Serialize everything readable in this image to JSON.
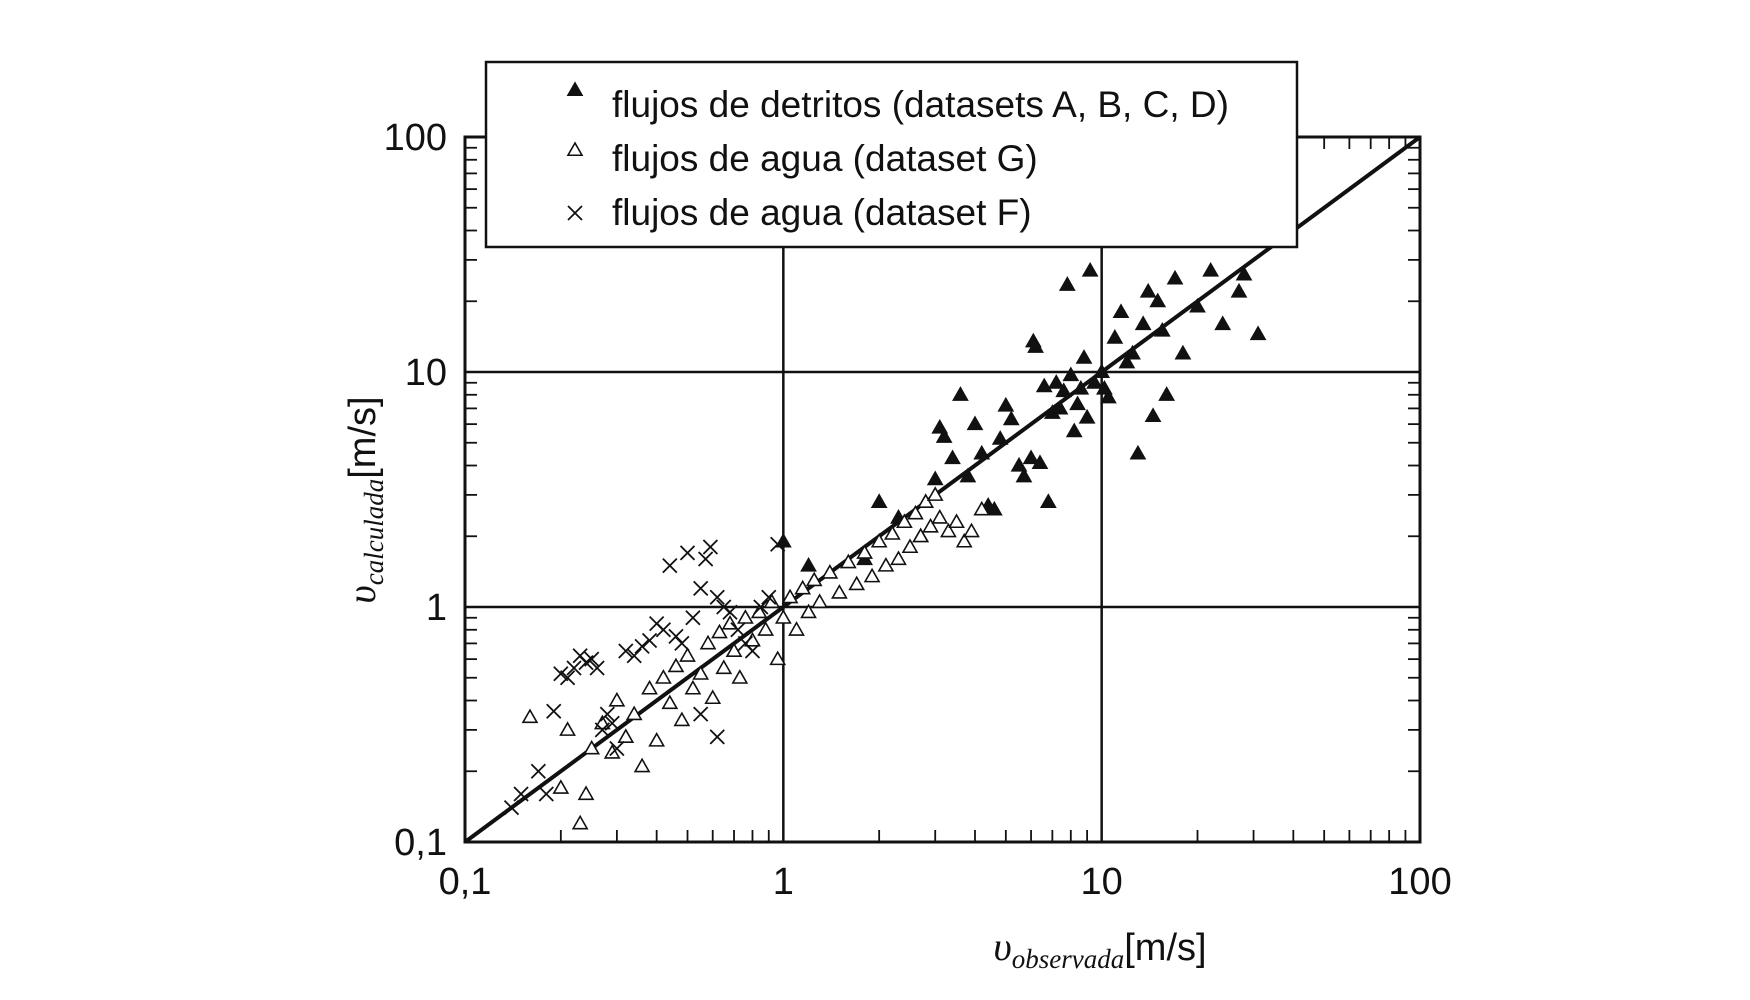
{
  "chart_data": {
    "type": "scatter",
    "scale": {
      "x": "log",
      "y": "log"
    },
    "xlim": [
      0.1,
      100
    ],
    "ylim": [
      0.1,
      100
    ],
    "grid": "major",
    "legend_position": "top",
    "x_ticks": [
      "0,1",
      "1",
      "10",
      "100"
    ],
    "y_ticks": [
      "0,1",
      "1",
      "10",
      "100"
    ],
    "xlabel": {
      "symbol": "υ",
      "subscript": "observada",
      "unit": "[m/s]"
    },
    "ylabel": {
      "symbol": "υ",
      "subscript": "calculada",
      "unit": "[m/s]"
    },
    "reference_line": {
      "x": [
        0.1,
        100
      ],
      "y": [
        0.1,
        100
      ]
    },
    "series": [
      {
        "name": "flujos de detritos (datasets A, B, C, D)",
        "marker": "filled-triangle",
        "points": [
          [
            1.0,
            1.9
          ],
          [
            1.2,
            1.5
          ],
          [
            1.8,
            1.6
          ],
          [
            2.0,
            2.8
          ],
          [
            2.3,
            2.4
          ],
          [
            2.7,
            2.0
          ],
          [
            3.0,
            3.5
          ],
          [
            3.1,
            5.8
          ],
          [
            3.2,
            5.3
          ],
          [
            3.4,
            4.3
          ],
          [
            3.6,
            8.0
          ],
          [
            3.8,
            3.6
          ],
          [
            4.0,
            6.0
          ],
          [
            4.2,
            4.5
          ],
          [
            4.4,
            2.7
          ],
          [
            4.6,
            2.6
          ],
          [
            4.8,
            5.2
          ],
          [
            5.0,
            7.2
          ],
          [
            5.2,
            6.3
          ],
          [
            5.5,
            4.0
          ],
          [
            5.7,
            3.6
          ],
          [
            6.0,
            4.3
          ],
          [
            6.1,
            13.5
          ],
          [
            6.2,
            12.8
          ],
          [
            6.4,
            4.1
          ],
          [
            6.6,
            8.7
          ],
          [
            6.8,
            2.8
          ],
          [
            7.0,
            6.7
          ],
          [
            7.2,
            9.0
          ],
          [
            7.4,
            7.0
          ],
          [
            7.6,
            8.3
          ],
          [
            7.8,
            23.5
          ],
          [
            8.0,
            9.7
          ],
          [
            8.2,
            5.6
          ],
          [
            8.4,
            7.3
          ],
          [
            8.6,
            8.5
          ],
          [
            8.8,
            11.5
          ],
          [
            9.0,
            6.4
          ],
          [
            9.2,
            27.0
          ],
          [
            9.5,
            9.0
          ],
          [
            10.0,
            10.0
          ],
          [
            10.2,
            8.5
          ],
          [
            10.5,
            7.8
          ],
          [
            11.0,
            14.0
          ],
          [
            11.5,
            18.0
          ],
          [
            12.0,
            11.0
          ],
          [
            12.5,
            12.0
          ],
          [
            13.0,
            4.5
          ],
          [
            13.5,
            16.0
          ],
          [
            14.0,
            22.0
          ],
          [
            14.5,
            6.5
          ],
          [
            15.0,
            20.0
          ],
          [
            15.5,
            15.0
          ],
          [
            16.0,
            8.0
          ],
          [
            17.0,
            25.0
          ],
          [
            18.0,
            12.0
          ],
          [
            20.0,
            19.0
          ],
          [
            22.0,
            27.0
          ],
          [
            24.0,
            16.0
          ],
          [
            27.0,
            22.0
          ],
          [
            28.0,
            26.0
          ],
          [
            31.0,
            14.5
          ]
        ]
      },
      {
        "name": "flujos de agua (dataset G)",
        "marker": "open-triangle",
        "points": [
          [
            0.16,
            0.34
          ],
          [
            0.2,
            0.17
          ],
          [
            0.21,
            0.3
          ],
          [
            0.23,
            0.12
          ],
          [
            0.24,
            0.16
          ],
          [
            0.25,
            0.25
          ],
          [
            0.27,
            0.32
          ],
          [
            0.29,
            0.24
          ],
          [
            0.3,
            0.4
          ],
          [
            0.32,
            0.28
          ],
          [
            0.34,
            0.35
          ],
          [
            0.36,
            0.21
          ],
          [
            0.38,
            0.45
          ],
          [
            0.4,
            0.27
          ],
          [
            0.42,
            0.5
          ],
          [
            0.44,
            0.39
          ],
          [
            0.46,
            0.56
          ],
          [
            0.48,
            0.33
          ],
          [
            0.5,
            0.62
          ],
          [
            0.52,
            0.45
          ],
          [
            0.55,
            0.52
          ],
          [
            0.58,
            0.7
          ],
          [
            0.6,
            0.41
          ],
          [
            0.63,
            0.78
          ],
          [
            0.65,
            0.55
          ],
          [
            0.68,
            0.85
          ],
          [
            0.7,
            0.65
          ],
          [
            0.73,
            0.5
          ],
          [
            0.76,
            0.9
          ],
          [
            0.8,
            0.72
          ],
          [
            0.84,
            0.95
          ],
          [
            0.88,
            0.8
          ],
          [
            0.92,
            1.05
          ],
          [
            0.96,
            0.6
          ],
          [
            1.0,
            0.9
          ],
          [
            1.05,
            1.1
          ],
          [
            1.1,
            0.8
          ],
          [
            1.15,
            1.2
          ],
          [
            1.2,
            0.95
          ],
          [
            1.25,
            1.3
          ],
          [
            1.3,
            1.05
          ],
          [
            1.4,
            1.4
          ],
          [
            1.5,
            1.15
          ],
          [
            1.6,
            1.55
          ],
          [
            1.7,
            1.25
          ],
          [
            1.8,
            1.7
          ],
          [
            1.9,
            1.35
          ],
          [
            2.0,
            1.9
          ],
          [
            2.1,
            1.5
          ],
          [
            2.2,
            2.05
          ],
          [
            2.3,
            1.6
          ],
          [
            2.4,
            2.3
          ],
          [
            2.5,
            1.8
          ],
          [
            2.6,
            2.5
          ],
          [
            2.7,
            2.0
          ],
          [
            2.8,
            2.8
          ],
          [
            2.9,
            2.2
          ],
          [
            3.0,
            3.0
          ],
          [
            3.1,
            2.4
          ],
          [
            3.3,
            2.1
          ],
          [
            3.5,
            2.3
          ],
          [
            3.7,
            1.9
          ],
          [
            3.9,
            2.1
          ],
          [
            4.2,
            2.6
          ]
        ]
      },
      {
        "name": "flujos de agua (dataset F)",
        "marker": "cross",
        "points": [
          [
            0.14,
            0.14
          ],
          [
            0.15,
            0.16
          ],
          [
            0.17,
            0.2
          ],
          [
            0.18,
            0.16
          ],
          [
            0.19,
            0.36
          ],
          [
            0.2,
            0.52
          ],
          [
            0.21,
            0.5
          ],
          [
            0.22,
            0.55
          ],
          [
            0.23,
            0.62
          ],
          [
            0.24,
            0.58
          ],
          [
            0.25,
            0.6
          ],
          [
            0.26,
            0.55
          ],
          [
            0.27,
            0.3
          ],
          [
            0.28,
            0.35
          ],
          [
            0.29,
            0.32
          ],
          [
            0.3,
            0.25
          ],
          [
            0.32,
            0.65
          ],
          [
            0.34,
            0.62
          ],
          [
            0.36,
            0.68
          ],
          [
            0.38,
            0.72
          ],
          [
            0.4,
            0.85
          ],
          [
            0.42,
            0.8
          ],
          [
            0.44,
            1.5
          ],
          [
            0.46,
            0.75
          ],
          [
            0.48,
            0.7
          ],
          [
            0.5,
            1.7
          ],
          [
            0.52,
            0.9
          ],
          [
            0.55,
            1.2
          ],
          [
            0.57,
            1.6
          ],
          [
            0.59,
            1.8
          ],
          [
            0.62,
            1.1
          ],
          [
            0.65,
            1.0
          ],
          [
            0.68,
            0.95
          ],
          [
            0.72,
            0.8
          ],
          [
            0.76,
            0.7
          ],
          [
            0.8,
            0.65
          ],
          [
            0.85,
            1.0
          ],
          [
            0.9,
            1.1
          ],
          [
            0.96,
            1.85
          ],
          [
            0.62,
            0.28
          ],
          [
            0.55,
            0.35
          ]
        ]
      }
    ]
  }
}
